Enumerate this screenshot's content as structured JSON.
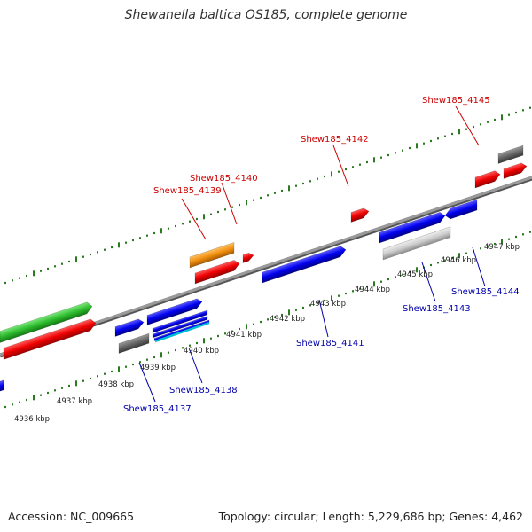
{
  "title": "Shewanella baltica OS185, complete genome",
  "footer": {
    "accession": "Accession: NC_009665",
    "summary": "Topology: circular; Length: 5,229,686 bp; Genes: 4,462"
  },
  "colors": {
    "plus_label": "#cc0000",
    "minus_label": "#0000aa",
    "tick": "#2a7a1f",
    "backbone": "#8a8a8a"
  },
  "tick_labels": [
    "4936 kbp",
    "4937 kbp",
    "4938 kbp",
    "4939 kbp",
    "4940 kbp",
    "4941 kbp",
    "4942 kbp",
    "4943 kbp",
    "4944 kbp",
    "4945 kbp",
    "4946 kbp",
    "4947 kbp"
  ],
  "gene_labels": {
    "plus": [
      "Shew185_4139",
      "Shew185_4140",
      "Shew185_4142",
      "Shew185_4145"
    ],
    "minus": [
      "Shew185_4137",
      "Shew185_4138",
      "Shew185_4141",
      "Shew185_4143",
      "Shew185_4144"
    ]
  }
}
